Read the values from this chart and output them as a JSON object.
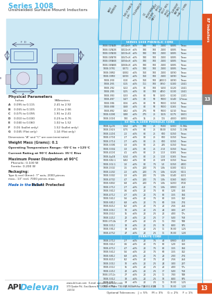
{
  "title": "Series 1008",
  "subtitle": "Unshielded Surface Mount Inductors",
  "bg_color": "#ffffff",
  "blue": "#4db8e8",
  "light_blue": "#cce8f4",
  "dark_blue": "#1a7bba",
  "orange": "#e05020",
  "gray_tab": "#999999",
  "text_dark": "#333333",
  "text_blue_link": "#1060c0",
  "grid_line": "#aaddee",
  "page_num": "13",
  "physical_params_title": "Physical Parameters",
  "params": [
    [
      "A",
      "0.095 to 0.115",
      "2.41 to 2.92"
    ],
    [
      "B",
      "0.065 to 0.105",
      "2.15 to 2.66"
    ],
    [
      "C",
      "0.075 to 0.095",
      "1.91 to 2.41"
    ],
    [
      "D",
      "0.010 to 0.030",
      "0.25 to 0.76"
    ],
    [
      "E",
      "0.040 to 0.060",
      "1.02 to 1.52"
    ],
    [
      "F",
      "0.06 (bullet only)",
      "1.52 (bullet only)"
    ],
    [
      "G",
      "0.045 (Flat only)",
      "1.14 (Flat only)"
    ]
  ],
  "params_note": "Dimensions \"A\" and \"C\" are over-terminated.",
  "weight_mass": "Weight Mass (Grams): 0.1",
  "op_temp": "Operating Temperature Range: -55°C to +125°C",
  "current_rating": "Current Rating at 90°C Ambient: 35°C Rise",
  "max_power_title": "Maximum Power Dissipation at 90°C",
  "max_power_lines": [
    "Phenolic: 0.100 W",
    "Ferrite: 0.200 W"
  ],
  "packaging_title": "Packaging",
  "packaging_text": "Tape & reel (8mm): 7\" axis, 2000 pieces\nmax.; 13\" reel, 7000 pieces max.",
  "made_in": "Made in the U.S.A.",
  "patent": "Patent Protected",
  "col_headers": [
    "PART\nNUMBER",
    "INDUCTANCE\n(µH)",
    "TOLERANCE",
    "DC\nRESISTANCE\n(OHMS\nMAX.)",
    "TEST\nFREQ.\n(kHz)",
    "SELF RES.\nFREQ.\n(MHz)",
    "CURRENT\nRATING\n(mA)",
    "Q MIN."
  ],
  "section1_title": "SERIES 1008 PHENOLIC CORE",
  "section1_rows": [
    [
      "1008-01N4B",
      "0.014nH",
      "±5%",
      "180",
      "100",
      "2100",
      "0.085",
      "Tmax"
    ],
    [
      "1008-02N2B",
      "0.022nH",
      "±5%",
      "180",
      "100",
      "2100",
      "0.085",
      "Tmax"
    ],
    [
      "1008-03N3B",
      "0.033nH",
      "±5%",
      "180",
      "100",
      "2100",
      "0.085",
      "Tmax"
    ],
    [
      "1008-04N7B",
      "0.047nH",
      "±5%",
      "180",
      "100",
      "2100",
      "0.085",
      "Tmax"
    ],
    [
      "1008-05N6B",
      "0.056nH",
      "±5%",
      "180",
      "100",
      "2100",
      "0.085",
      "Tmax"
    ],
    [
      "1008-06N8B",
      "0.068nH",
      "±5%",
      "180",
      "100",
      "2100",
      "0.085",
      "Tmax"
    ],
    [
      "1008-07R1",
      "0.071",
      "±5%",
      "180",
      "100",
      "2100",
      "0.085",
      "Tmax"
    ],
    [
      "1008-08R2",
      "0.082",
      "±5%",
      "160",
      "100",
      "2100",
      "0.090",
      "Tmax"
    ],
    [
      "1008-09R3",
      "0.093",
      "±5%",
      "160",
      "100",
      "2100",
      "0.090",
      "Tmax"
    ],
    [
      "1008-1R0",
      "0.10",
      "±5%",
      "160",
      "100",
      "24000",
      "0.090",
      "Tmax"
    ],
    [
      "1008-1R5",
      "0.15",
      "±5%",
      "111",
      "100",
      "3850",
      "0.100",
      "1.041"
    ],
    [
      "1008-2R2",
      "0.22",
      "±5%",
      "80",
      "100",
      "5150",
      "0.120",
      "1.041"
    ],
    [
      "1008-2R5",
      "0.25",
      "±5%",
      "80",
      "100",
      "4450",
      "0.130",
      "1.041"
    ],
    [
      "1008-3R3",
      "0.33",
      "±5%",
      "80",
      "50",
      "3500",
      "0.130",
      "1.101"
    ],
    [
      "1008-4R7",
      "0.47",
      "±5%",
      "80",
      "50",
      "5000",
      "0.140",
      "1.Tmax"
    ],
    [
      "1008-5R6",
      "0.56",
      "±5%",
      "80",
      "50",
      "5000",
      "0.150",
      "Tmax"
    ],
    [
      "1008-6R8",
      "0.68",
      "±5%",
      "80",
      "50",
      "5000",
      "0.165",
      "Tmax"
    ],
    [
      "1008-8R2",
      "0.82",
      "±5%",
      "275",
      "50",
      "5000",
      "0.210",
      "Tmax"
    ],
    [
      "1008-600K",
      "0.88",
      "±5%",
      "275",
      "25",
      "3115",
      "0.175",
      "0.601"
    ],
    [
      "1008-101K",
      "100",
      "±5%",
      "15",
      "25",
      "115",
      "4.000",
      "0.891"
    ]
  ],
  "section2_title": "63 MIL & 1008 PHENOLIC CORE",
  "section2_rows": [
    [
      "1008-1p0S",
      "0.34",
      "±5%",
      "180",
      "25",
      "P500",
      "0.300",
      "11.96k"
    ],
    [
      "1008-1S1S",
      "0.75",
      "±5%",
      "80",
      "25",
      "G500",
      "0.150",
      "11.196"
    ],
    [
      "1008-221K",
      "2.2",
      "±5%",
      "80",
      "25",
      "600",
      "0.150",
      "Tmax"
    ],
    [
      "1008-271K",
      "2.7",
      "±5%",
      "80",
      "25",
      "600",
      "0.150",
      "Tmax"
    ],
    [
      "1008-2714",
      "2.7",
      "±5%",
      "80",
      "25",
      "600",
      "0.150",
      "Tmax"
    ],
    [
      "1008-330K",
      "3.3",
      "±5%",
      "80",
      "25",
      "285",
      "0.150",
      "Tmax"
    ],
    [
      "1008-3304",
      "3.3",
      "±5%",
      "80",
      "25",
      "2.13",
      "0.150",
      "Tmax"
    ],
    [
      "1008-411K",
      "4.1",
      "±5%",
      "80",
      "25",
      "1.13",
      "0.165",
      "Tmax"
    ],
    [
      "1008-4p1B",
      "6.34",
      "±5%",
      "80",
      "25",
      "1.10",
      "0.165",
      "Tmax"
    ],
    [
      "1008-682-1",
      "6.82",
      "±5%",
      "80",
      "25",
      "1.09",
      "0.150",
      "Tmax"
    ],
    [
      "1008-102-1",
      "1.0",
      "±5%",
      "80",
      "7.5",
      "1.0",
      "0.150",
      "4800"
    ],
    [
      "1008-1502",
      "1.5",
      "±5%",
      "200",
      "7.5",
      "1.0k",
      "0.100",
      "5411"
    ],
    [
      "1008-2202",
      "2.2",
      "±5%",
      "200",
      "7.5",
      "1.0k",
      "0.120",
      "5411"
    ],
    [
      "1008-3302",
      "3.3",
      "±5%",
      "200",
      "7.5",
      "1.0k",
      "0.140",
      "4531"
    ],
    [
      "1008-4702",
      "4.7",
      "±5%",
      "200",
      "7.5",
      "1.0k",
      "0.160",
      "3840"
    ],
    [
      "1008-6802",
      "6.8",
      "±5%",
      "200",
      "7.5",
      "1.0k",
      "0.200",
      "3T10"
    ],
    [
      "1008-2712",
      "2.7",
      "±5%",
      "20",
      "7.5",
      "1.0k",
      "0.900",
      "453"
    ],
    [
      "1008-3612",
      "3.6",
      "±5%",
      "20",
      "7.5",
      "80",
      "1.20",
      "356"
    ],
    [
      "1008-4712",
      "4.7",
      "±5%",
      "20",
      "7.5",
      "80",
      "1.55",
      "334"
    ],
    [
      "1008-5612",
      "5.6",
      "±5%",
      "20",
      "7.5",
      "80",
      "1.55",
      "312"
    ],
    [
      "1008-6812",
      "6.8",
      "±5%",
      "20",
      "7.5",
      "68",
      "1.56",
      "274"
    ],
    [
      "1008-8212",
      "8.2",
      "±5%",
      "20",
      "7.5",
      "20",
      "2.56",
      "264"
    ],
    [
      "1008-1012",
      "10",
      "±5%",
      "20",
      "2.5",
      "24",
      "3.00",
      "287"
    ],
    [
      "1008-1512",
      "15",
      "±5%",
      "20",
      "2.5",
      "20",
      "4.00",
      "T7s"
    ],
    [
      "1008-2212",
      "22",
      "±5%",
      "20",
      "2.5",
      "17",
      "5.00",
      "T58"
    ],
    [
      "1008-2712b",
      "27",
      "±5%",
      "20",
      "2.5",
      "11",
      "7.00",
      "T48"
    ],
    [
      "1008-3312",
      "33",
      "±5%",
      "20",
      "2.5",
      "10",
      "8.00",
      "975"
    ],
    [
      "1008-3912",
      "39",
      "±5%",
      "20",
      "2.5",
      "11",
      "10.00",
      "1.25"
    ],
    [
      "1008-4752",
      "47",
      "±5%",
      "20",
      "2.5",
      "11",
      "10.00",
      "1.20"
    ]
  ],
  "section3_title": "FERRITE CORE",
  "section3_rows": [
    [
      "1008-2712",
      "2.7",
      "±5%",
      "20",
      "7.5",
      "43",
      "0.900",
      "453"
    ],
    [
      "1008-3612",
      "3.6",
      "±5%",
      "20",
      "7.5",
      "80",
      "1.20",
      "356"
    ],
    [
      "1008-4712",
      "4.7",
      "±5%",
      "20",
      "7.5",
      "80",
      "1.55",
      "334"
    ],
    [
      "1008-5612",
      "5.6",
      "±5%",
      "20",
      "7.5",
      "68",
      "1.55",
      "312"
    ],
    [
      "1008-6812",
      "6.8",
      "±5%",
      "20",
      "7.5",
      "28",
      "2.00",
      "274"
    ],
    [
      "1008-8212",
      "8.2",
      "±5%",
      "20",
      "7.5",
      "20",
      "2.56",
      "264"
    ],
    [
      "1008-1012",
      "10",
      "±5%",
      "20",
      "2.5",
      "24",
      "3.00",
      "287"
    ],
    [
      "1008-1512",
      "15",
      "±5%",
      "20",
      "2.5",
      "20",
      "4.00",
      "T7s"
    ],
    [
      "1008-2212",
      "22",
      "±5%",
      "20",
      "2.5",
      "17",
      "5.00",
      "T58"
    ],
    [
      "1008-2712c",
      "27",
      "±5%",
      "20",
      "2.5",
      "11",
      "7.00",
      "T48"
    ],
    [
      "1008-3312",
      "33",
      "±5%",
      "20",
      "2.5",
      "10",
      "8.00",
      "975"
    ],
    [
      "1008-3912",
      "39",
      "±5%",
      "20",
      "2.5",
      "11",
      "10.00",
      "1.25"
    ],
    [
      "1008-4752",
      "47",
      "±5%",
      "20",
      "2.5",
      "11",
      "10.00",
      "1.20"
    ]
  ],
  "optional_tolerances": "Optional Tolerances:   J = 5%     M = 3%     G = 2%     F = 1%",
  "rf_tab_text": "RF Inductors",
  "footer_url": "www.delevan.com",
  "footer_email": "E-mail: apisales@delevan.com",
  "footer_addr": "370 Quaker Rd., East Aurora NY 14052  •  Phone 716-652-3600  •  Fax 716-652-4014",
  "footer_year": "2-2002"
}
